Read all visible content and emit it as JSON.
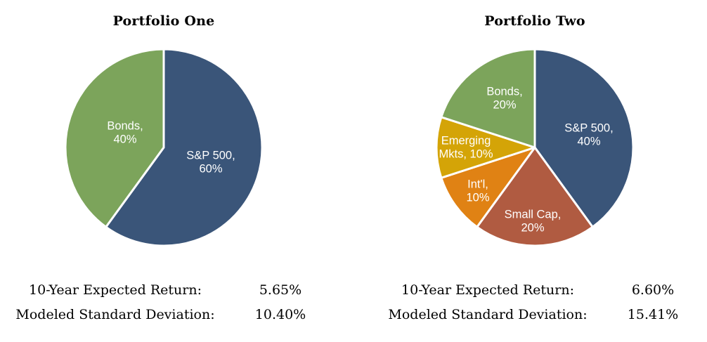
{
  "page": {
    "background": "#ffffff",
    "text_color": "#000000",
    "slice_border_color": "#ffffff",
    "slice_label_color": "#ffffff"
  },
  "chart_data": [
    {
      "type": "pie",
      "title": "Portfolio One",
      "direction": "clockwise",
      "start_angle_deg": 0,
      "legend": "none",
      "slices": [
        {
          "name": "S&P 500",
          "value": 60,
          "label_lines": [
            "S&P 500,",
            "60%"
          ],
          "color": "#3A5579",
          "label_offset": [
            67,
            21
          ]
        },
        {
          "name": "Bonds",
          "value": 40,
          "label_lines": [
            "Bonds,",
            "40%"
          ],
          "color": "#7CA45B",
          "label_offset": [
            -55,
            -21
          ]
        }
      ],
      "stats": [
        {
          "label": "10-Year Expected Return:",
          "value": "5.65%"
        },
        {
          "label": "Modeled Standard Deviation:",
          "value": "10.40%"
        }
      ]
    },
    {
      "type": "pie",
      "title": "Portfolio Two",
      "direction": "clockwise",
      "start_angle_deg": 0,
      "legend": "none",
      "slices": [
        {
          "name": "S&P 500",
          "value": 40,
          "label_lines": [
            "S&P 500,",
            "40%"
          ],
          "color": "#3A5579",
          "label_offset": [
            77,
            -18
          ]
        },
        {
          "name": "Small Cap",
          "value": 20,
          "label_lines": [
            "Small Cap,",
            "20%"
          ],
          "color": "#B05B41",
          "label_offset": [
            -3,
            105
          ]
        },
        {
          "name": "Int'l",
          "value": 10,
          "label_lines": [
            "Int'l,",
            "10%"
          ],
          "color": "#E08214",
          "label_offset": [
            -81,
            62
          ]
        },
        {
          "name": "Emerging Mkts",
          "value": 10,
          "label_lines": [
            "Emerging",
            "Mkts, 10%"
          ],
          "color": "#D4A407",
          "label_offset": [
            -98,
            0
          ]
        },
        {
          "name": "Bonds",
          "value": 20,
          "label_lines": [
            "Bonds,",
            "20%"
          ],
          "color": "#7CA45B",
          "label_offset": [
            -43,
            -70
          ]
        }
      ],
      "stats": [
        {
          "label": "10-Year Expected Return:",
          "value": "6.60%"
        },
        {
          "label": "Modeled Standard Deviation:",
          "value": "15.41%"
        }
      ]
    }
  ]
}
